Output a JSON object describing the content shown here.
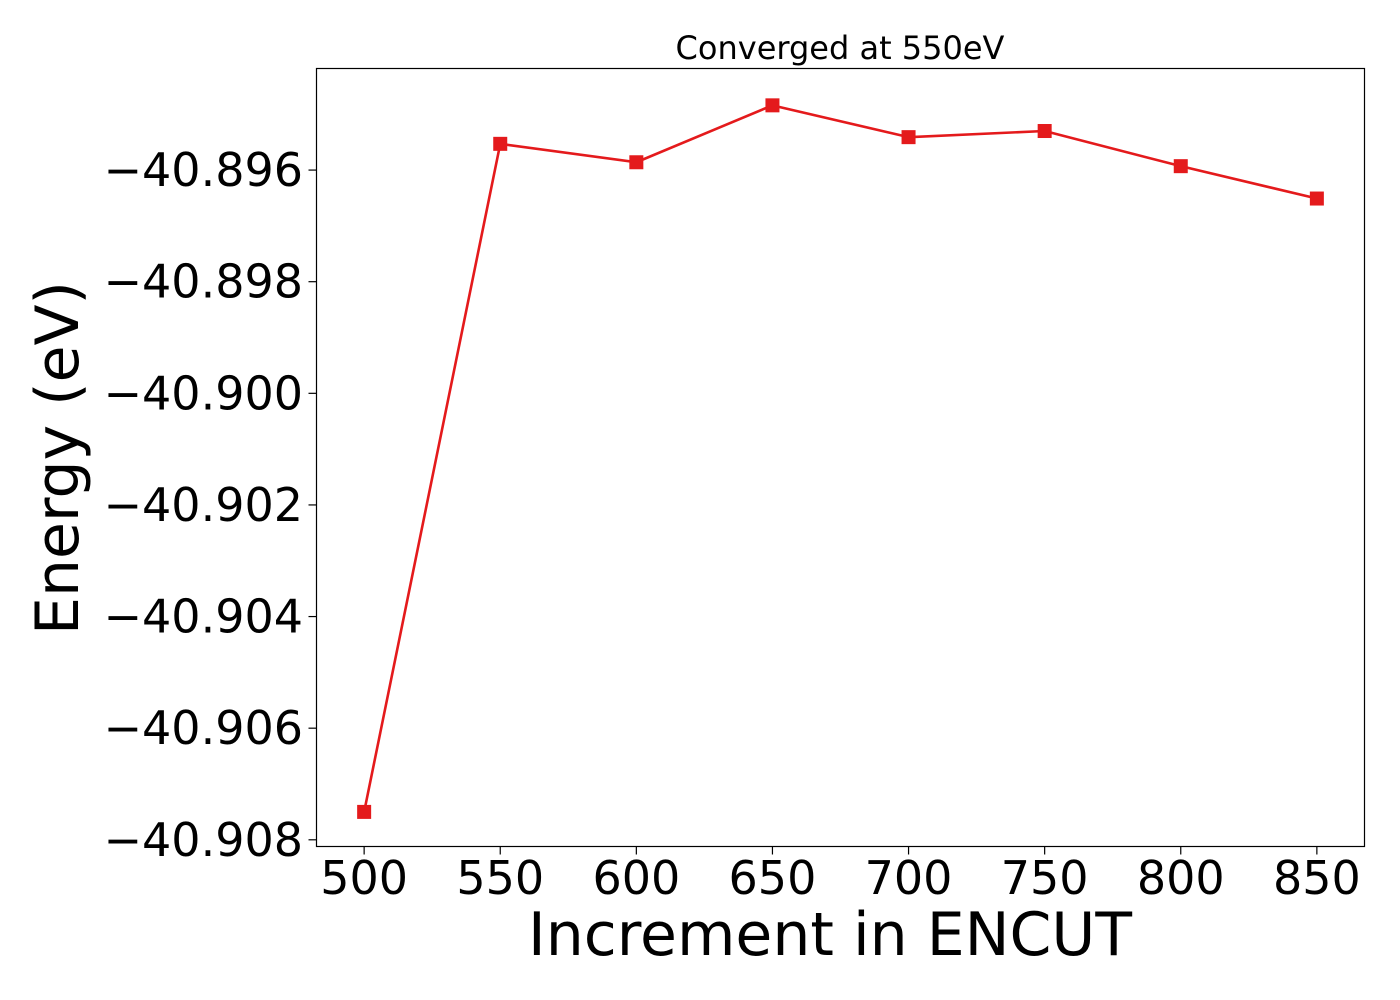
{
  "chart_data": {
    "type": "line",
    "title": "Converged at 550eV",
    "xlabel": "Increment in ENCUT",
    "ylabel": "Energy (eV)",
    "x": [
      500,
      550,
      600,
      650,
      700,
      750,
      800,
      850
    ],
    "series": [
      {
        "values": [
          -40.9075,
          -40.89553,
          -40.89586,
          -40.89484,
          -40.89541,
          -40.8953,
          -40.89593,
          -40.89651
        ],
        "color": "#e41a1c",
        "marker": "square"
      }
    ],
    "xticks": [
      500,
      550,
      600,
      650,
      700,
      750,
      800,
      850
    ],
    "xtick_labels": [
      "500",
      "550",
      "600",
      "650",
      "700",
      "750",
      "800",
      "850"
    ],
    "yticks": [
      -40.908,
      -40.906,
      -40.904,
      -40.902,
      -40.9,
      -40.898,
      -40.896
    ],
    "ytick_labels": [
      "−40.908",
      "−40.906",
      "−40.904",
      "−40.902",
      "−40.900",
      "−40.898",
      "−40.896"
    ],
    "xlim": [
      482.5,
      867.5
    ],
    "ylim": [
      -40.90812,
      -40.89418
    ],
    "grid": false,
    "legend": false
  }
}
